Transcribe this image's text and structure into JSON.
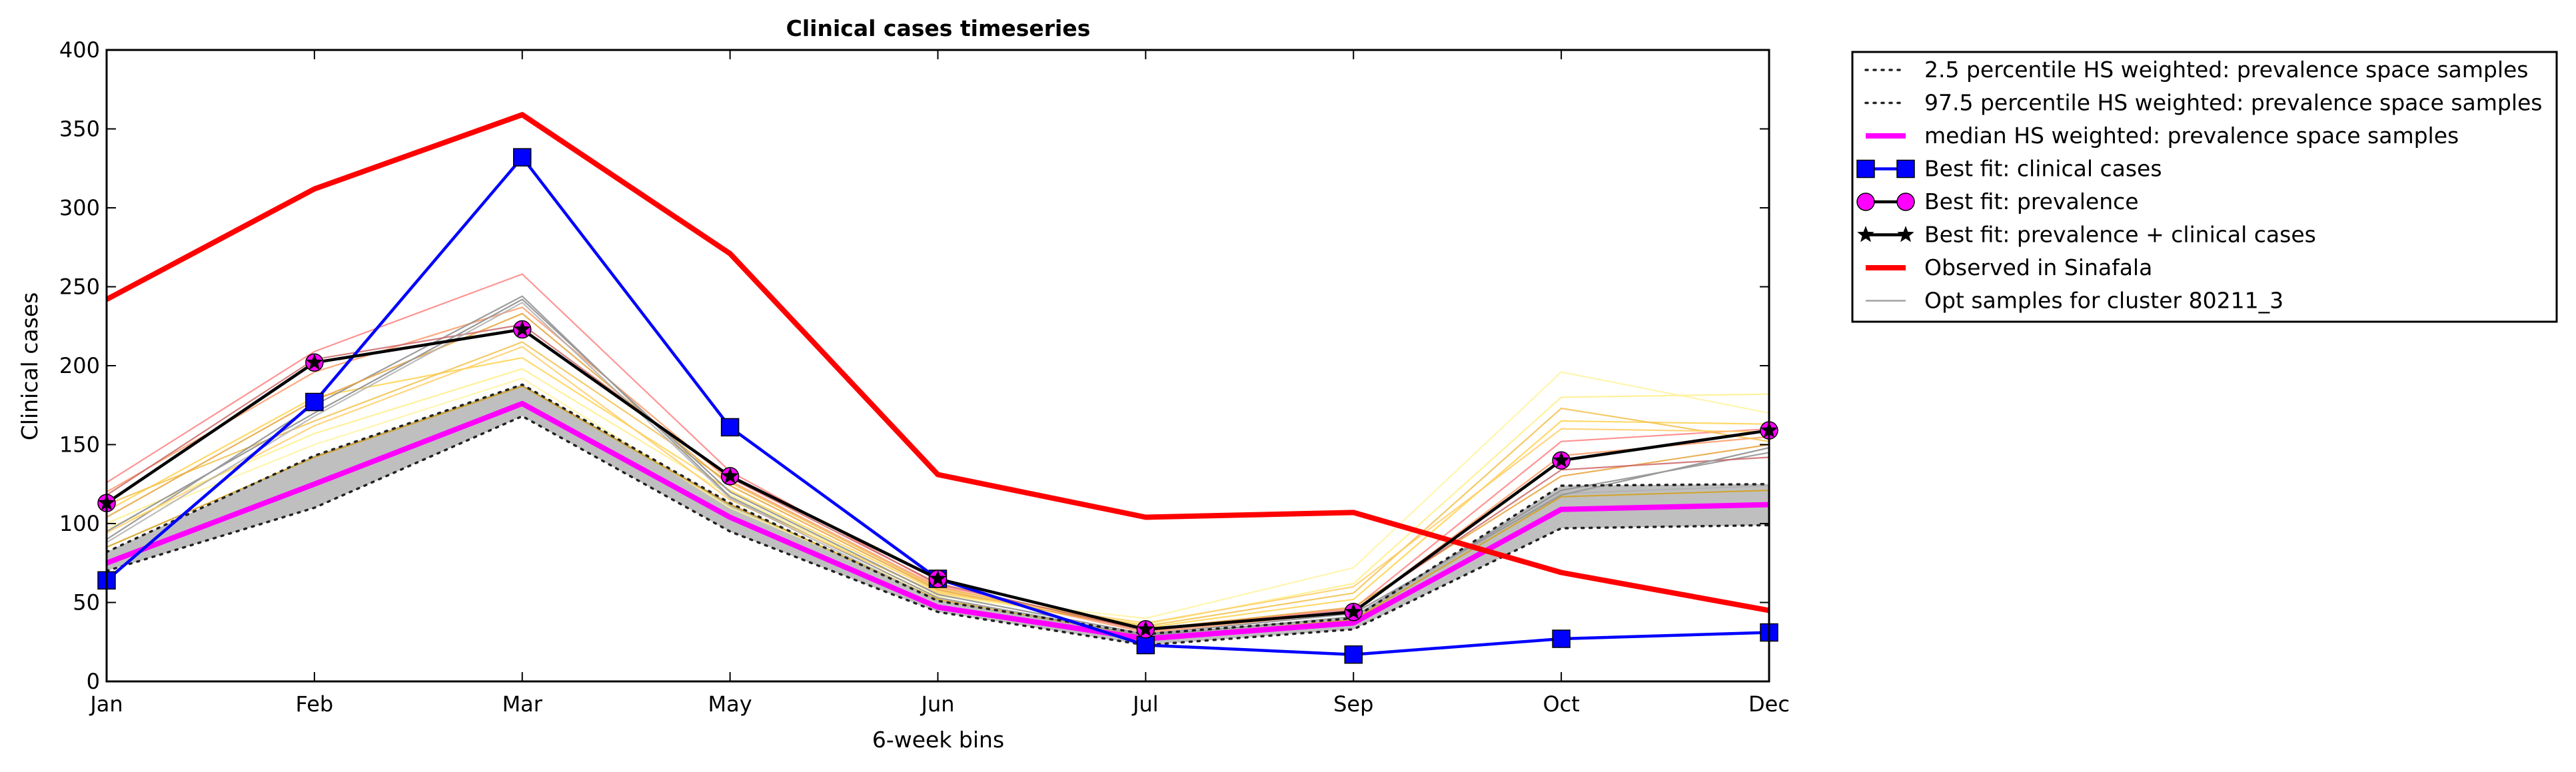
{
  "chart_data": {
    "type": "line",
    "title": "Clinical cases timeseries",
    "xlabel": "6-week bins",
    "ylabel": "Clinical cases",
    "categories": [
      "Jan",
      "Feb",
      "Mar",
      "May",
      "Jun",
      "Jul",
      "Sep",
      "Oct",
      "Dec"
    ],
    "ylim": [
      0,
      400
    ],
    "yticks": [
      0,
      50,
      100,
      150,
      200,
      250,
      300,
      350,
      400
    ],
    "legend_position": "outside-top-right",
    "band": {
      "lower": [
        70,
        110,
        168,
        95,
        44,
        23,
        33,
        97,
        99
      ],
      "upper": [
        82,
        143,
        188,
        113,
        51,
        30,
        40,
        124,
        125
      ],
      "color": "#bfbfbf"
    },
    "series": [
      {
        "name": "2.5 percentile HS weighted: prevalence space samples",
        "style": "dotted",
        "color": "#222222",
        "values": [
          70,
          110,
          168,
          95,
          44,
          23,
          33,
          97,
          99
        ]
      },
      {
        "name": "97.5 percentile HS weighted: prevalence space samples",
        "style": "dotted",
        "color": "#222222",
        "values": [
          82,
          143,
          188,
          113,
          51,
          30,
          40,
          124,
          125
        ]
      },
      {
        "name": "median HS weighted: prevalence space samples",
        "style": "solid",
        "color": "#ff00ff",
        "values": [
          75,
          125,
          176,
          104,
          47,
          27,
          37,
          109,
          112
        ]
      },
      {
        "name": "Best fit: clinical cases",
        "style": "square-marker",
        "color": "#0000ff",
        "values": [
          64,
          177,
          332,
          161,
          65,
          23,
          17,
          27,
          31
        ]
      },
      {
        "name": "Best fit: prevalence",
        "style": "circle-marker",
        "color": "#ff00ff",
        "values": [
          113,
          202,
          223,
          130,
          65,
          33,
          44,
          140,
          159
        ]
      },
      {
        "name": "Best fit: prevalence + clinical cases",
        "style": "star-marker",
        "color": "#000000",
        "values": [
          113,
          202,
          223,
          130,
          65,
          33,
          44,
          140,
          159
        ]
      },
      {
        "name": "Observed in Sinafala",
        "style": "thick",
        "color": "#ff0000",
        "values": [
          242,
          312,
          359,
          271,
          131,
          104,
          107,
          69,
          45
        ]
      },
      {
        "name": "Opt samples for cluster 80211_3",
        "style": "thin",
        "color": "#999999",
        "values": [
          95,
          170,
          242,
          120,
          55,
          30,
          43,
          118,
          148
        ]
      }
    ],
    "sample_lines": [
      {
        "color": "#ff8080",
        "values": [
          126,
          209,
          258,
          133,
          61,
          33,
          46,
          152,
          160
        ]
      },
      {
        "color": "#ff9966",
        "values": [
          120,
          196,
          237,
          127,
          60,
          31,
          44,
          143,
          155
        ]
      },
      {
        "color": "#ffd24d",
        "values": [
          108,
          180,
          205,
          121,
          57,
          34,
          52,
          165,
          163
        ]
      },
      {
        "color": "#ffee88",
        "values": [
          100,
          157,
          198,
          118,
          55,
          36,
          62,
          180,
          182
        ]
      },
      {
        "color": "#fff3a0",
        "values": [
          97,
          150,
          192,
          110,
          54,
          40,
          72,
          196,
          170
        ]
      },
      {
        "color": "#f2c14e",
        "values": [
          112,
          165,
          215,
          126,
          59,
          35,
          56,
          173,
          152
        ]
      },
      {
        "color": "#8c8c8c",
        "values": [
          90,
          175,
          244,
          117,
          53,
          29,
          41,
          121,
          145
        ]
      },
      {
        "color": "#d4a017",
        "values": [
          85,
          142,
          187,
          112,
          52,
          28,
          39,
          117,
          121
        ]
      },
      {
        "color": "#e8a33b",
        "values": [
          104,
          178,
          233,
          124,
          58,
          33,
          47,
          130,
          150
        ]
      },
      {
        "color": "#ffcc66",
        "values": [
          94,
          162,
          212,
          115,
          56,
          37,
          60,
          160,
          158
        ]
      },
      {
        "color": "#cc6666",
        "values": [
          118,
          204,
          226,
          129,
          62,
          32,
          45,
          134,
          142
        ]
      },
      {
        "color": "#b0b0b0",
        "values": [
          88,
          168,
          240,
          116,
          51,
          28,
          40,
          119,
          124
        ]
      }
    ]
  }
}
